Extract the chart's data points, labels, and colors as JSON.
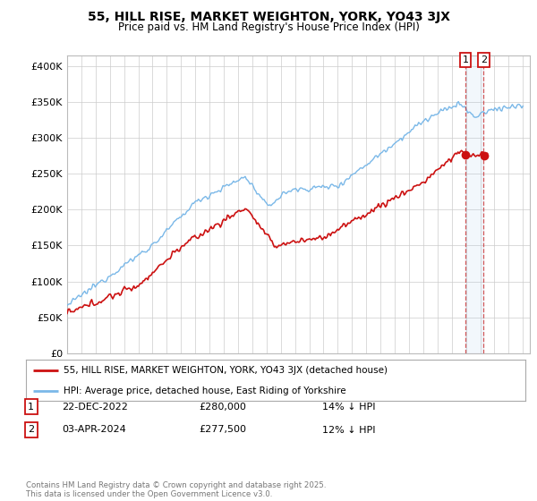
{
  "title": "55, HILL RISE, MARKET WEIGHTON, YORK, YO43 3JX",
  "subtitle": "Price paid vs. HM Land Registry's House Price Index (HPI)",
  "ylabel_ticks": [
    "£0",
    "£50K",
    "£100K",
    "£150K",
    "£200K",
    "£250K",
    "£300K",
    "£350K",
    "£400K"
  ],
  "ytick_values": [
    0,
    50000,
    100000,
    150000,
    200000,
    250000,
    300000,
    350000,
    400000
  ],
  "ylim": [
    0,
    415000
  ],
  "xlim_start": 1995.0,
  "xlim_end": 2027.5,
  "hpi_color": "#7ab8e8",
  "price_color": "#cc1111",
  "marker1_date": 2022.97,
  "marker1_price": 280000,
  "marker2_date": 2024.25,
  "marker2_price": 277500,
  "legend_line1": "55, HILL RISE, MARKET WEIGHTON, YORK, YO43 3JX (detached house)",
  "legend_line2": "HPI: Average price, detached house, East Riding of Yorkshire",
  "table_row1": [
    "1",
    "22-DEC-2022",
    "£280,000",
    "14% ↓ HPI"
  ],
  "table_row2": [
    "2",
    "03-APR-2024",
    "£277,500",
    "12% ↓ HPI"
  ],
  "footnote": "Contains HM Land Registry data © Crown copyright and database right 2025.\nThis data is licensed under the Open Government Licence v3.0.",
  "background_color": "#ffffff",
  "plot_bg_color": "#ffffff",
  "grid_color": "#cccccc",
  "shade_color": "#ddeeff"
}
